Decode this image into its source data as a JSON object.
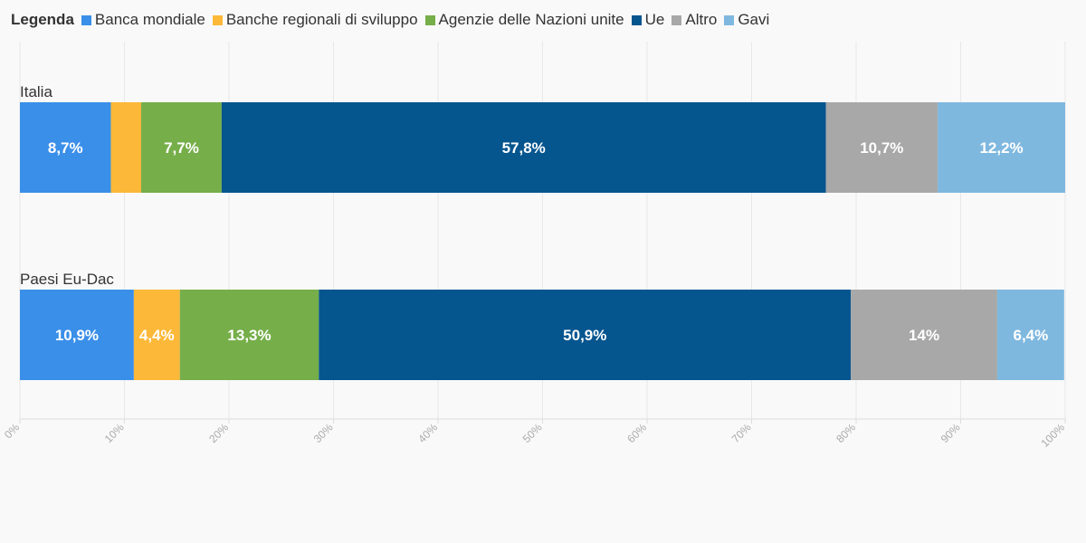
{
  "legend": {
    "title": "Legenda"
  },
  "chart_data": {
    "type": "bar",
    "orientation": "horizontal",
    "stacked": true,
    "categories": [
      "Italia",
      "Paesi Eu-Dac"
    ],
    "series": [
      {
        "name": "Banca mondiale",
        "color": "#3a8fe9",
        "values": [
          8.7,
          10.9
        ],
        "labels": [
          "8,7%",
          "10,9%"
        ]
      },
      {
        "name": "Banche regionali di sviluppo",
        "color": "#fcb838",
        "values": [
          2.9,
          4.4
        ],
        "labels": [
          "",
          "4,4%"
        ]
      },
      {
        "name": "Agenzie delle Nazioni unite",
        "color": "#76ae4a",
        "values": [
          7.7,
          13.3
        ],
        "labels": [
          "7,7%",
          "13,3%"
        ]
      },
      {
        "name": "Ue",
        "color": "#05558f",
        "values": [
          57.8,
          50.9
        ],
        "labels": [
          "57,8%",
          "50,9%"
        ]
      },
      {
        "name": "Altro",
        "color": "#a8a8a8",
        "values": [
          10.7,
          14.0
        ],
        "labels": [
          "10,7%",
          "14%"
        ]
      },
      {
        "name": "Gavi",
        "color": "#7fb8df",
        "values": [
          12.2,
          6.4
        ],
        "labels": [
          "12,2%",
          "6,4%"
        ]
      }
    ],
    "x_ticks": [
      "0%",
      "10%",
      "20%",
      "30%",
      "40%",
      "50%",
      "60%",
      "70%",
      "80%",
      "90%",
      "100%"
    ],
    "xlim": [
      0,
      100
    ],
    "grid": true,
    "legend_position": "top-left"
  }
}
